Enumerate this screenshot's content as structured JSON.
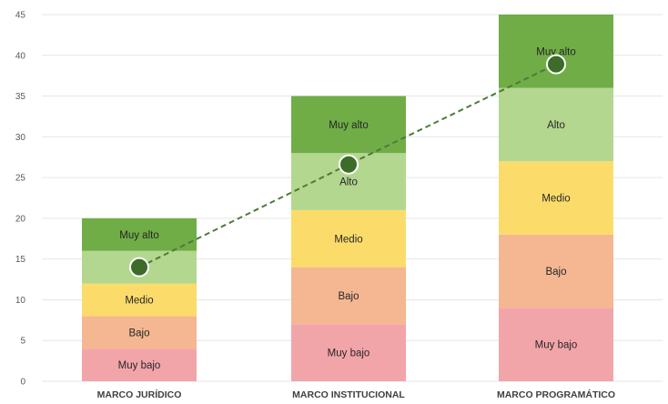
{
  "chart_data": {
    "type": "bar",
    "stacked": true,
    "categories": [
      "MARCO JURÍDICO",
      "MARCO INSTITUCIONAL",
      "MARCO PROGRAMÁTICO"
    ],
    "series": [
      {
        "name": "Muy bajo",
        "values": [
          4,
          7,
          9
        ],
        "color": "#f2a5a9"
      },
      {
        "name": "Bajo",
        "values": [
          4,
          7,
          9
        ],
        "color": "#f4b792"
      },
      {
        "name": "Medio",
        "values": [
          4,
          7,
          9
        ],
        "color": "#fbdc6b"
      },
      {
        "name": "Alto",
        "values": [
          4,
          7,
          9
        ],
        "color": "#b3d78f"
      },
      {
        "name": "Muy alto",
        "values": [
          4,
          7,
          9
        ],
        "color": "#70ad47"
      }
    ],
    "markers": {
      "values": [
        14,
        26.6,
        38.9
      ],
      "color": "#3d6b2a",
      "line_style": "dashed"
    },
    "yticks": [
      0,
      5,
      10,
      15,
      20,
      25,
      30,
      35,
      40,
      45
    ],
    "ylim": [
      0,
      45
    ],
    "grid": true,
    "title": "",
    "xlabel": "",
    "ylabel": ""
  }
}
